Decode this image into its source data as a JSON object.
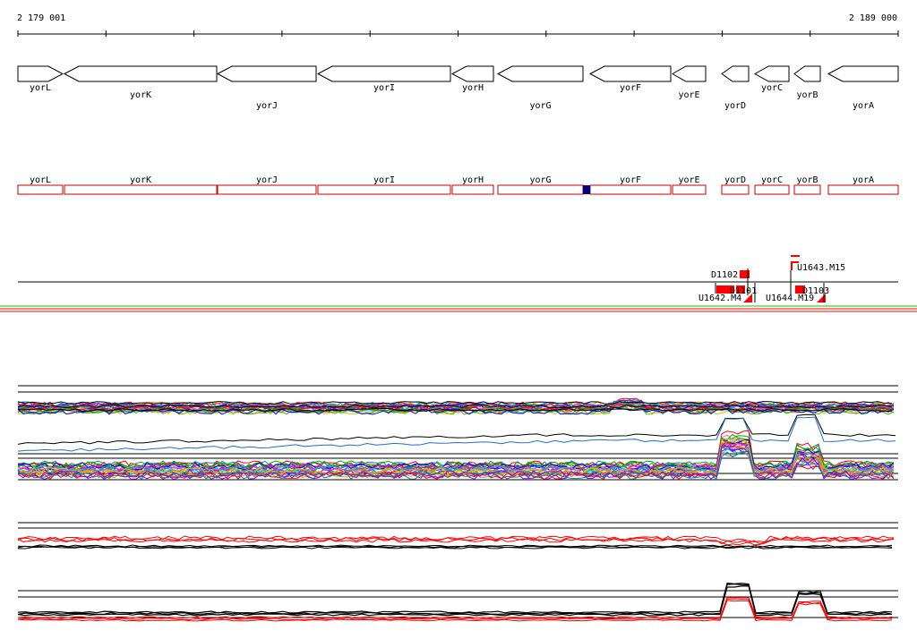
{
  "ruler": {
    "start_label": "2 179 001",
    "end_label": "2 189 000"
  },
  "genes": [
    {
      "name": "yorL",
      "s": 20,
      "e": 70,
      "strand": "+",
      "row": 0
    },
    {
      "name": "yorK",
      "s": 72,
      "e": 242,
      "strand": "-",
      "row": 1
    },
    {
      "name": "yorJ",
      "s": 243,
      "e": 353,
      "strand": "-",
      "row": 2
    },
    {
      "name": "yorI",
      "s": 355,
      "e": 503,
      "strand": "-",
      "row": 0
    },
    {
      "name": "yorH",
      "s": 505,
      "e": 551,
      "strand": "-",
      "row": 0
    },
    {
      "name": "yorG",
      "s": 556,
      "e": 651,
      "strand": "-",
      "row": 2
    },
    {
      "name": "yorF",
      "s": 659,
      "e": 749,
      "strand": "-",
      "row": 0
    },
    {
      "name": "yorE",
      "s": 751,
      "e": 788,
      "strand": "-",
      "row": 1
    },
    {
      "name": "yorD",
      "s": 806,
      "e": 836,
      "strand": "-",
      "row": 2
    },
    {
      "name": "yorC",
      "s": 843,
      "e": 881,
      "strand": "-",
      "row": 0
    },
    {
      "name": "yorB",
      "s": 887,
      "e": 916,
      "strand": "-",
      "row": 1
    },
    {
      "name": "yorA",
      "s": 925,
      "e": 1003,
      "strand": "-",
      "row": 2
    }
  ],
  "features": [
    {
      "label": "D1102"
    },
    {
      "label": "U1643.M15"
    },
    {
      "label": "U1642.M4"
    },
    {
      "label": "D1101"
    },
    {
      "label": "U1644.M19"
    },
    {
      "label": "D1103"
    }
  ],
  "colors": {
    "gene_box": "#cc0000",
    "feature": "#ff0000",
    "marker": "#000080",
    "track_red": "#ff0000",
    "track_green": "#00cc00"
  }
}
